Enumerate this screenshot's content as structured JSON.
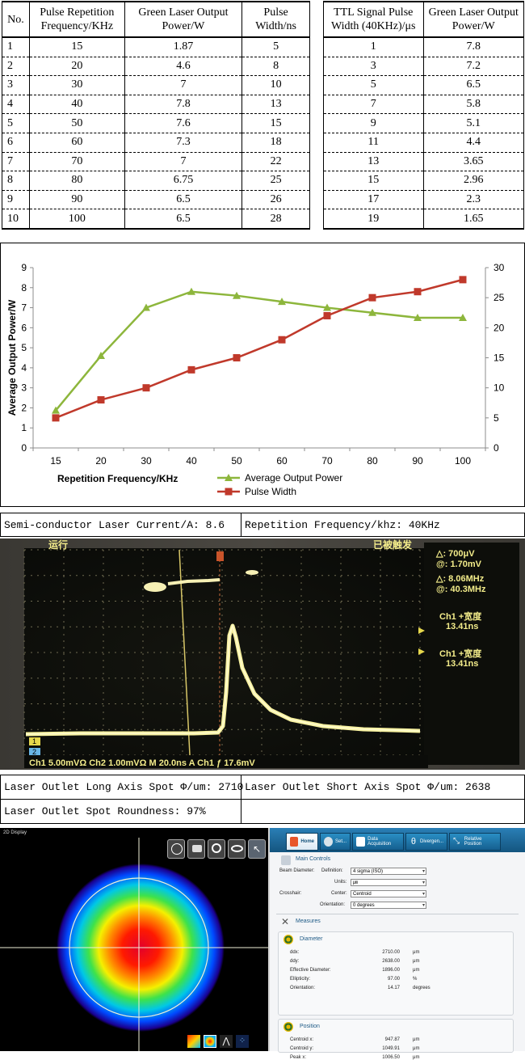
{
  "table1": {
    "headers": [
      "No.",
      "Pulse Repetition\nFrequency/KHz",
      "Green Laser Output\nPower/W",
      "Pulse\nWidth/ns"
    ],
    "rows": [
      [
        "1",
        "15",
        "1.87",
        "5"
      ],
      [
        "2",
        "20",
        "4.6",
        "8"
      ],
      [
        "3",
        "30",
        "7",
        "10"
      ],
      [
        "4",
        "40",
        "7.8",
        "13"
      ],
      [
        "5",
        "50",
        "7.6",
        "15"
      ],
      [
        "6",
        "60",
        "7.3",
        "18"
      ],
      [
        "7",
        "70",
        "7",
        "22"
      ],
      [
        "8",
        "80",
        "6.75",
        "25"
      ],
      [
        "9",
        "90",
        "6.5",
        "26"
      ],
      [
        "10",
        "100",
        "6.5",
        "28"
      ]
    ]
  },
  "table2": {
    "headers": [
      "TTL Signal Pulse\nWidth (40KHz)/μs",
      "Green Laser Output\nPower/W"
    ],
    "rows": [
      [
        "1",
        "7.8"
      ],
      [
        "3",
        "7.2"
      ],
      [
        "5",
        "6.5"
      ],
      [
        "7",
        "5.8"
      ],
      [
        "9",
        "5.1"
      ],
      [
        "11",
        "4.4"
      ],
      [
        "13",
        "3.65"
      ],
      [
        "15",
        "2.96"
      ],
      [
        "17",
        "2.3"
      ],
      [
        "19",
        "1.65"
      ]
    ]
  },
  "chart_data": {
    "type": "line",
    "x": [
      15,
      20,
      30,
      40,
      50,
      60,
      70,
      80,
      90,
      100
    ],
    "categories": [
      "15",
      "20",
      "30",
      "40",
      "50",
      "60",
      "70",
      "80",
      "90",
      "100"
    ],
    "series": [
      {
        "name": "Average Output Power",
        "axis": "left",
        "color": "#8db63c",
        "marker": "triangle",
        "values": [
          1.87,
          4.6,
          7,
          7.8,
          7.6,
          7.3,
          7,
          6.75,
          6.5,
          6.5
        ]
      },
      {
        "name": "Pulse Width",
        "axis": "right",
        "color": "#c0392b",
        "marker": "square",
        "values": [
          5,
          8,
          10,
          13,
          15,
          18,
          22,
          25,
          26,
          28
        ]
      }
    ],
    "xlabel": "Repetition Frequency/KHz",
    "ylabel": "Average Output Power/W",
    "ylim": [
      0,
      9
    ],
    "y_ticks": [
      "0",
      "1",
      "2",
      "3",
      "4",
      "5",
      "6",
      "7",
      "8",
      "9"
    ],
    "y2lim": [
      0,
      30
    ],
    "y2_ticks": [
      "0",
      "5",
      "10",
      "15",
      "20",
      "25",
      "30"
    ],
    "grid": false,
    "legend_position": "bottom"
  },
  "info1": {
    "current": "Semi-conductor Laser Current/A: 8.6",
    "frequency": "Repetition Frequency/khz: 40KHz"
  },
  "scope": {
    "top_left": "运行",
    "top_right": "已被触发",
    "delta1": "△:  700μV",
    "at1": "@:  1.70mV",
    "delta2": "△:  8.06MHz",
    "at2": "@:  40.3MHz",
    "ch1_label_a": "Ch1 +宽度",
    "ch1_value_a": "13.41ns",
    "ch1_label_b": "Ch1 +宽度",
    "ch1_value_b": "13.41ns",
    "bottom": "Ch1  5.00mVΩ  Ch2  1.00mVΩ  M 20.0ns  A  Ch1  ƒ  17.6mV",
    "marker1": "1",
    "marker2": "2"
  },
  "info2": {
    "long_axis": "Laser Outlet Long Axis Spot Φ/um: 2710",
    "short_axis": "Laser Outlet Short Axis Spot Φ/um: 2638",
    "roundness": "Laser Outlet Spot Roundness: 97%"
  },
  "beam": {
    "display_title": "2D Display",
    "tabs": [
      "Home",
      "Set...",
      "Data Acquisition",
      "Divergen...",
      "Relative Position"
    ],
    "main_controls": "Main Controls",
    "beam_diameter": "Beam Diameter:",
    "definition_label": "Definition:",
    "definition_value": "4 sigma (ISO)",
    "units_label": "Units:",
    "units_value": "㎛",
    "crosshair": "Crosshair:",
    "center_label": "Center:",
    "center_value": "Centroid",
    "orientation_label": "Orientation:",
    "orientation_value": "0 degrees",
    "measures": "Measures",
    "diameter": "Diameter",
    "rows": [
      [
        "ddx:",
        "2710.00",
        "μm"
      ],
      [
        "ddy:",
        "2638.00",
        "μm"
      ],
      [
        "Effective Diameter:",
        "1896.00",
        "μm"
      ],
      [
        "Ellipticity:",
        "97.00",
        "%"
      ],
      [
        "Orientation:",
        "14.17",
        "degrees"
      ]
    ],
    "position": "Position",
    "pos_rows": [
      [
        "Centroid x:",
        "947.87",
        "μm"
      ],
      [
        "Centroid y:",
        "1049.91",
        "μm"
      ],
      [
        "Peak x:",
        "1006.50",
        "μm"
      ]
    ]
  }
}
